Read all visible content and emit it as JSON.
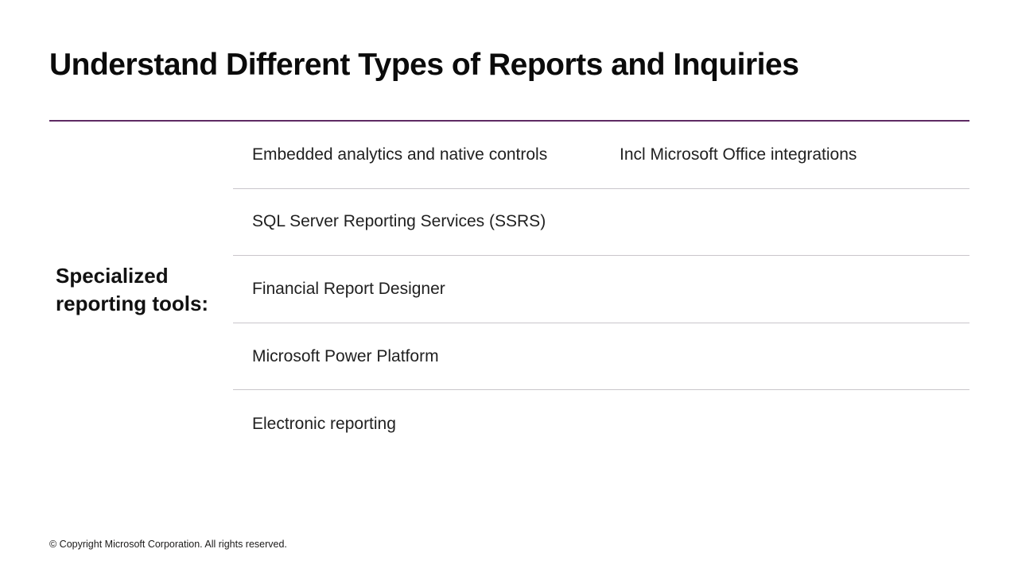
{
  "slide": {
    "title": "Understand Different Types of Reports and Inquiries",
    "section_label": "Specialized reporting tools:"
  },
  "table": {
    "rows": [
      {
        "cells": [
          "Embedded analytics and native controls",
          "Incl Microsoft Office integrations"
        ]
      },
      {
        "cells": [
          "SQL Server Reporting Services (SSRS)"
        ]
      },
      {
        "cells": [
          "Financial Report Designer"
        ]
      },
      {
        "cells": [
          "Microsoft Power Platform"
        ]
      },
      {
        "cells": [
          "Electronic reporting"
        ]
      }
    ]
  },
  "footer": {
    "copyright": "© Copyright Microsoft Corporation. All rights reserved."
  },
  "colors": {
    "accent_rule": "#5e2a63",
    "divider": "#c9c6cb",
    "title_text": "#0b0b0b",
    "body_text": "#212121"
  }
}
